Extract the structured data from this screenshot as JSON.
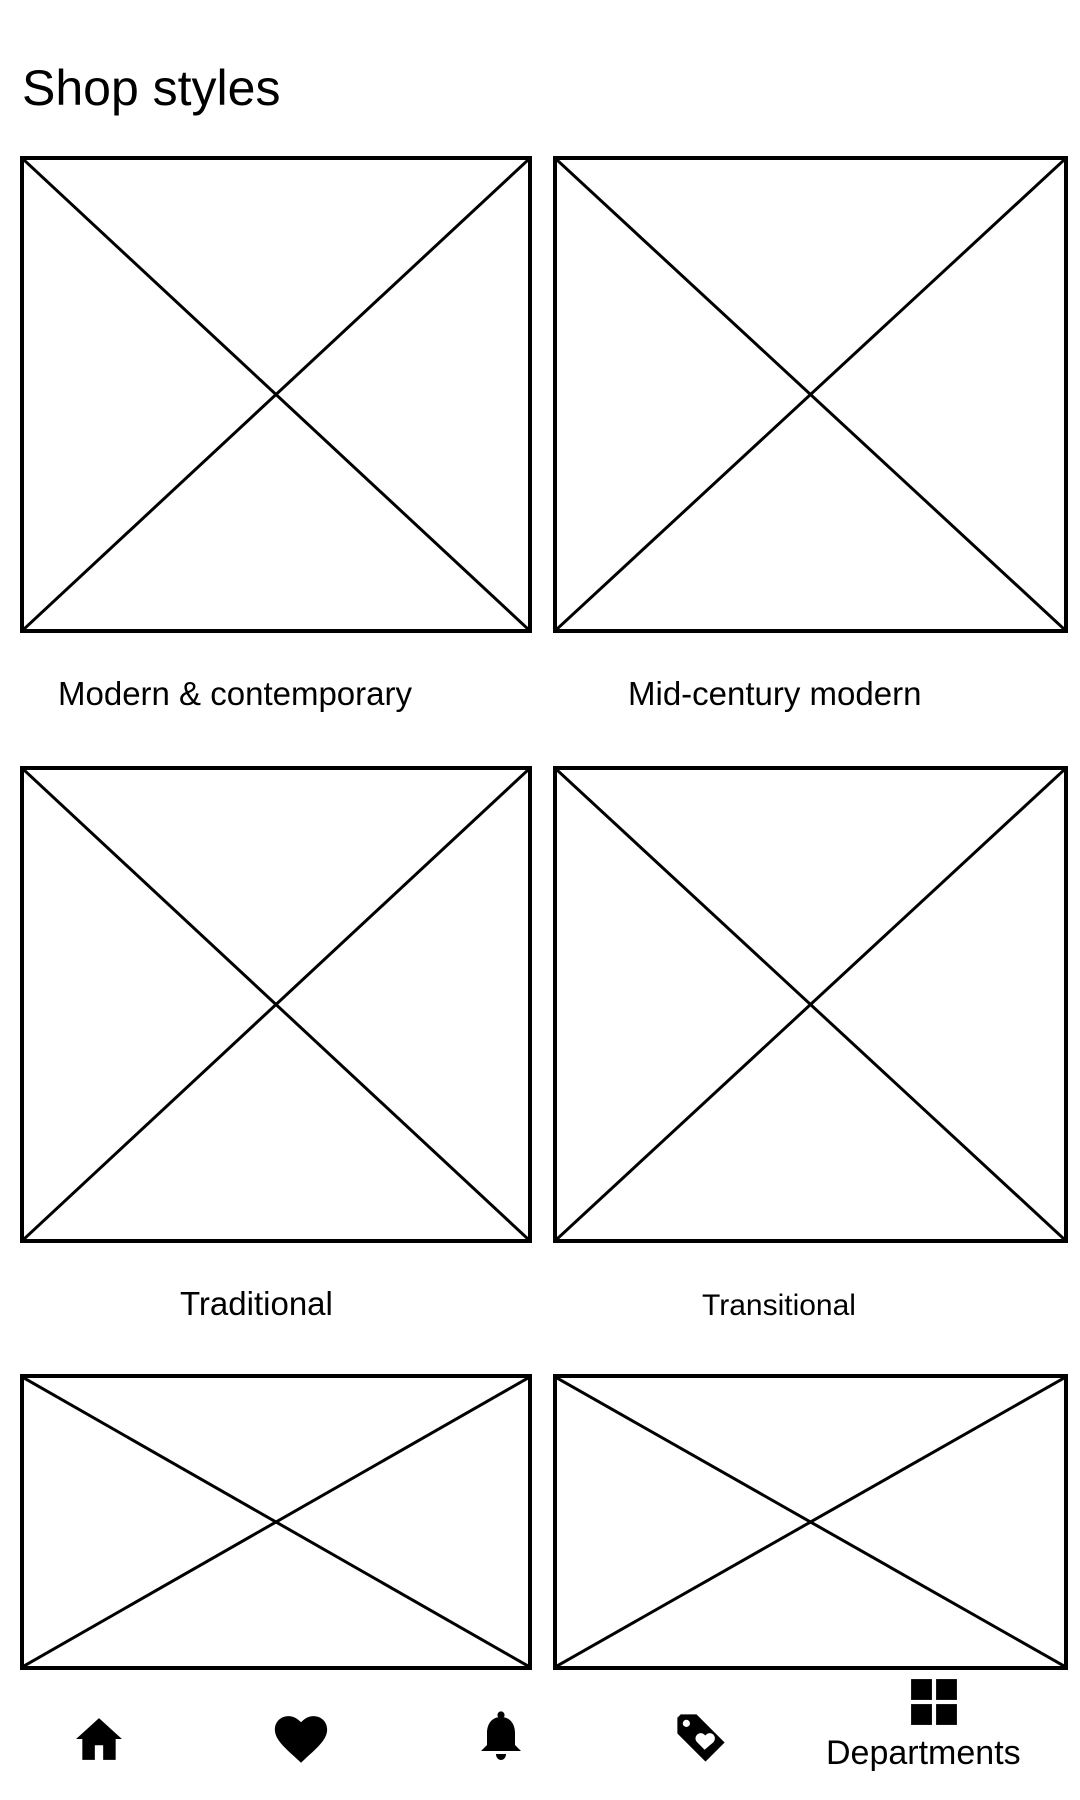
{
  "page": {
    "title": "Shop styles"
  },
  "styles": [
    {
      "label": "Modern & contemporary",
      "icon": "image-placeholder-icon"
    },
    {
      "label": "Mid-century modern",
      "icon": "image-placeholder-icon"
    },
    {
      "label": "Traditional",
      "icon": "image-placeholder-icon"
    },
    {
      "label": "Transitional",
      "icon": "image-placeholder-icon"
    },
    {
      "label": "",
      "icon": "image-placeholder-icon"
    },
    {
      "label": "",
      "icon": "image-placeholder-icon"
    }
  ],
  "bottom_nav": {
    "items": [
      {
        "name": "home",
        "icon": "home-icon",
        "label": ""
      },
      {
        "name": "favorites",
        "icon": "heart-icon",
        "label": ""
      },
      {
        "name": "notifications",
        "icon": "bell-icon",
        "label": ""
      },
      {
        "name": "deals",
        "icon": "tag-heart-icon",
        "label": ""
      },
      {
        "name": "departments",
        "icon": "grid-icon",
        "label": "Departments"
      }
    ]
  },
  "colors": {
    "background": "#ffffff",
    "foreground": "#000000"
  }
}
